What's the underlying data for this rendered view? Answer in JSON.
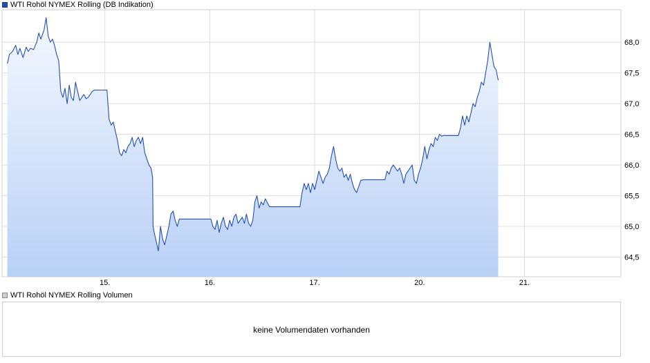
{
  "legend": {
    "price_label": "WTI Rohöl NYMEX Rolling (DB Indikation)",
    "volume_label": "WTI Rohöl NYMEX Rolling Volumen"
  },
  "volume_panel": {
    "message": "keine Volumendaten vorhanden"
  },
  "colors": {
    "line": "#1f4fb4",
    "area_top": "#f4f8fe",
    "area_bottom": "#b9d0f6",
    "grid": "#dddddd",
    "frame": "#cfcfcf"
  },
  "chart_data": {
    "type": "area",
    "series": [
      {
        "name": "WTI Rohöl NYMEX Rolling (DB Indikation)",
        "points": [
          [
            0.0,
            67.65
          ],
          [
            0.02,
            67.8
          ],
          [
            0.05,
            67.85
          ],
          [
            0.08,
            67.95
          ],
          [
            0.1,
            67.8
          ],
          [
            0.12,
            67.9
          ],
          [
            0.15,
            67.75
          ],
          [
            0.18,
            67.92
          ],
          [
            0.2,
            67.85
          ],
          [
            0.22,
            67.9
          ],
          [
            0.25,
            67.88
          ],
          [
            0.28,
            68.0
          ],
          [
            0.3,
            68.15
          ],
          [
            0.32,
            68.05
          ],
          [
            0.35,
            68.2
          ],
          [
            0.37,
            68.4
          ],
          [
            0.39,
            68.1
          ],
          [
            0.41,
            68.0
          ],
          [
            0.43,
            68.05
          ],
          [
            0.45,
            67.95
          ],
          [
            0.47,
            67.8
          ],
          [
            0.49,
            67.7
          ],
          [
            0.51,
            67.2
          ],
          [
            0.53,
            67.1
          ],
          [
            0.55,
            67.25
          ],
          [
            0.57,
            67.0
          ],
          [
            0.59,
            67.3
          ],
          [
            0.61,
            67.1
          ],
          [
            0.63,
            67.05
          ],
          [
            0.65,
            67.35
          ],
          [
            0.67,
            67.2
          ],
          [
            0.69,
            67.05
          ],
          [
            0.71,
            67.1
          ],
          [
            0.73,
            67.15
          ],
          [
            0.75,
            67.08
          ],
          [
            0.77,
            67.1
          ],
          [
            0.79,
            67.15
          ],
          [
            0.81,
            67.2
          ],
          [
            0.83,
            67.22
          ],
          [
            0.85,
            67.22
          ],
          [
            0.87,
            67.22
          ],
          [
            0.89,
            67.22
          ],
          [
            0.91,
            67.22
          ],
          [
            0.93,
            67.22
          ],
          [
            0.95,
            67.22
          ],
          [
            0.97,
            66.75
          ],
          [
            0.99,
            66.65
          ],
          [
            1.01,
            66.7
          ],
          [
            1.03,
            66.55
          ],
          [
            1.05,
            66.4
          ],
          [
            1.07,
            66.2
          ],
          [
            1.09,
            66.15
          ],
          [
            1.11,
            66.25
          ],
          [
            1.13,
            66.2
          ],
          [
            1.15,
            66.3
          ],
          [
            1.17,
            66.35
          ],
          [
            1.19,
            66.45
          ],
          [
            1.21,
            66.3
          ],
          [
            1.23,
            66.4
          ],
          [
            1.25,
            66.45
          ],
          [
            1.27,
            66.35
          ],
          [
            1.29,
            66.45
          ],
          [
            1.31,
            66.2
          ],
          [
            1.33,
            66.1
          ],
          [
            1.35,
            66.0
          ],
          [
            1.37,
            65.95
          ],
          [
            1.385,
            65.8
          ],
          [
            1.39,
            65.0
          ],
          [
            1.4,
            64.9
          ],
          [
            1.42,
            64.75
          ],
          [
            1.44,
            64.6
          ],
          [
            1.46,
            65.0
          ],
          [
            1.48,
            64.8
          ],
          [
            1.5,
            64.7
          ],
          [
            1.52,
            64.85
          ],
          [
            1.54,
            65.0
          ],
          [
            1.56,
            65.2
          ],
          [
            1.58,
            65.25
          ],
          [
            1.6,
            65.1
          ],
          [
            1.62,
            65.0
          ],
          [
            1.64,
            65.12
          ],
          [
            1.66,
            65.12
          ],
          [
            1.7,
            65.12
          ],
          [
            1.75,
            65.12
          ],
          [
            1.8,
            65.12
          ],
          [
            1.85,
            65.12
          ],
          [
            1.9,
            65.12
          ],
          [
            1.94,
            65.12
          ],
          [
            1.96,
            65.0
          ],
          [
            1.98,
            64.95
          ],
          [
            2.0,
            65.1
          ],
          [
            2.02,
            64.9
          ],
          [
            2.04,
            65.05
          ],
          [
            2.06,
            65.15
          ],
          [
            2.08,
            65.0
          ],
          [
            2.1,
            64.95
          ],
          [
            2.12,
            65.1
          ],
          [
            2.14,
            65.0
          ],
          [
            2.16,
            65.15
          ],
          [
            2.18,
            65.2
          ],
          [
            2.2,
            65.05
          ],
          [
            2.22,
            65.1
          ],
          [
            2.24,
            65.15
          ],
          [
            2.26,
            65.05
          ],
          [
            2.28,
            65.2
          ],
          [
            2.3,
            65.05
          ],
          [
            2.32,
            65.0
          ],
          [
            2.34,
            65.1
          ],
          [
            2.36,
            65.4
          ],
          [
            2.38,
            65.5
          ],
          [
            2.4,
            65.3
          ],
          [
            2.42,
            65.4
          ],
          [
            2.44,
            65.35
          ],
          [
            2.46,
            65.45
          ],
          [
            2.48,
            65.38
          ],
          [
            2.5,
            65.32
          ],
          [
            2.55,
            65.32
          ],
          [
            2.6,
            65.32
          ],
          [
            2.65,
            65.32
          ],
          [
            2.7,
            65.32
          ],
          [
            2.75,
            65.32
          ],
          [
            2.79,
            65.32
          ],
          [
            2.81,
            65.55
          ],
          [
            2.83,
            65.7
          ],
          [
            2.85,
            65.6
          ],
          [
            2.87,
            65.7
          ],
          [
            2.89,
            65.55
          ],
          [
            2.91,
            65.7
          ],
          [
            2.93,
            65.6
          ],
          [
            2.95,
            65.75
          ],
          [
            2.97,
            65.9
          ],
          [
            2.99,
            65.8
          ],
          [
            3.01,
            65.7
          ],
          [
            3.03,
            65.8
          ],
          [
            3.05,
            65.85
          ],
          [
            3.07,
            65.95
          ],
          [
            3.09,
            66.15
          ],
          [
            3.11,
            66.3
          ],
          [
            3.13,
            66.1
          ],
          [
            3.15,
            65.95
          ],
          [
            3.17,
            65.9
          ],
          [
            3.19,
            65.95
          ],
          [
            3.21,
            65.8
          ],
          [
            3.23,
            65.85
          ],
          [
            3.25,
            65.75
          ],
          [
            3.27,
            65.85
          ],
          [
            3.29,
            65.7
          ],
          [
            3.31,
            65.6
          ],
          [
            3.33,
            65.55
          ],
          [
            3.35,
            65.65
          ],
          [
            3.37,
            65.75
          ],
          [
            3.4,
            65.76
          ],
          [
            3.45,
            65.76
          ],
          [
            3.5,
            65.76
          ],
          [
            3.55,
            65.76
          ],
          [
            3.6,
            65.76
          ],
          [
            3.62,
            65.9
          ],
          [
            3.64,
            65.85
          ],
          [
            3.66,
            65.95
          ],
          [
            3.68,
            66.0
          ],
          [
            3.7,
            65.95
          ],
          [
            3.72,
            65.9
          ],
          [
            3.74,
            65.95
          ],
          [
            3.76,
            65.85
          ],
          [
            3.78,
            65.7
          ],
          [
            3.8,
            65.85
          ],
          [
            3.82,
            65.9
          ],
          [
            3.84,
            65.95
          ],
          [
            3.86,
            66.0
          ],
          [
            3.88,
            65.75
          ],
          [
            3.9,
            65.7
          ],
          [
            3.92,
            65.85
          ],
          [
            3.94,
            65.95
          ],
          [
            3.96,
            66.1
          ],
          [
            3.98,
            66.3
          ],
          [
            4.0,
            66.1
          ],
          [
            4.02,
            66.25
          ],
          [
            4.04,
            66.35
          ],
          [
            4.06,
            66.3
          ],
          [
            4.08,
            66.45
          ],
          [
            4.1,
            66.4
          ],
          [
            4.12,
            66.5
          ],
          [
            4.14,
            66.47
          ],
          [
            4.16,
            66.48
          ],
          [
            4.2,
            66.48
          ],
          [
            4.25,
            66.48
          ],
          [
            4.3,
            66.48
          ],
          [
            4.32,
            66.6
          ],
          [
            4.34,
            66.8
          ],
          [
            4.36,
            66.65
          ],
          [
            4.38,
            66.8
          ],
          [
            4.4,
            66.7
          ],
          [
            4.42,
            66.85
          ],
          [
            4.44,
            67.0
          ],
          [
            4.46,
            66.95
          ],
          [
            4.48,
            67.1
          ],
          [
            4.5,
            67.2
          ],
          [
            4.52,
            67.35
          ],
          [
            4.54,
            67.3
          ],
          [
            4.56,
            67.5
          ],
          [
            4.58,
            67.7
          ],
          [
            4.6,
            68.0
          ],
          [
            4.62,
            67.8
          ],
          [
            4.64,
            67.6
          ],
          [
            4.66,
            67.55
          ],
          [
            4.68,
            67.38
          ]
        ]
      }
    ],
    "x_ticks": [
      {
        "x": 0.93,
        "label": "15."
      },
      {
        "x": 1.93,
        "label": "16."
      },
      {
        "x": 2.93,
        "label": "17."
      },
      {
        "x": 3.93,
        "label": "20."
      },
      {
        "x": 4.93,
        "label": "21."
      }
    ],
    "y_ticks": [
      64.5,
      65.0,
      65.5,
      66.0,
      66.5,
      67.0,
      67.5,
      68.0
    ],
    "y_tick_labels": [
      "64,5",
      "65,0",
      "65,5",
      "66,0",
      "66,5",
      "67,0",
      "67,5",
      "68,0"
    ],
    "xlim": [
      -0.05,
      5.85
    ],
    "ylim": [
      64.18,
      68.53
    ],
    "grid": true,
    "xlabel": "",
    "ylabel": ""
  }
}
